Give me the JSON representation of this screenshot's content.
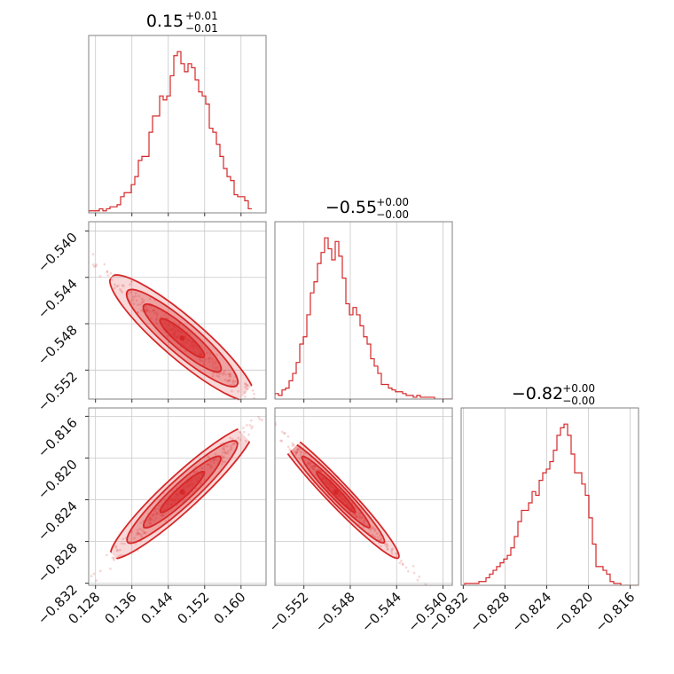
{
  "chart_data": {
    "type": "corner",
    "color": "#d62728",
    "parameters": [
      {
        "index": 0,
        "title_value": "0.15",
        "title_upper": "+0.01",
        "title_lower": "−0.01",
        "range": [
          0.1265,
          0.1655
        ],
        "ticks": [
          0.128,
          0.136,
          0.144,
          0.152,
          0.16
        ],
        "tick_labels": [
          "0.128",
          "0.136",
          "0.144",
          "0.152",
          "0.160"
        ],
        "hist_bin_start": 0.1265,
        "hist_bin_width": 0.00078,
        "hist_counts": [
          1,
          1,
          1,
          2,
          1,
          2,
          3,
          3,
          4,
          8,
          10,
          10,
          14,
          18,
          26,
          28,
          28,
          40,
          48,
          48,
          58,
          56,
          58,
          68,
          78,
          80,
          74,
          70,
          74,
          72,
          66,
          60,
          58,
          54,
          42,
          40,
          34,
          28,
          22,
          18,
          16,
          9,
          8,
          8,
          6,
          2
        ]
      },
      {
        "index": 1,
        "title_value": "−0.55",
        "title_upper": "+0.00",
        "title_lower": "−0.00",
        "range": [
          -0.5545,
          -0.5392
        ],
        "ticks": [
          -0.54,
          -0.544,
          -0.548,
          -0.552
        ],
        "tick_labels": [
          "−0.540",
          "−0.544",
          "−0.548",
          "−0.552"
        ],
        "x_ticks": [
          -0.552,
          -0.548,
          -0.544,
          -0.54
        ],
        "x_tick_labels": [
          "−0.552",
          "−0.548",
          "−0.544",
          "−0.540"
        ],
        "hist_bin_start": -0.5545,
        "hist_bin_width": 0.000306,
        "hist_counts": [
          3,
          2,
          5,
          6,
          10,
          14,
          20,
          30,
          34,
          46,
          58,
          64,
          74,
          80,
          88,
          82,
          76,
          86,
          78,
          66,
          52,
          46,
          50,
          46,
          40,
          34,
          30,
          22,
          18,
          14,
          8,
          8,
          6,
          5,
          4,
          4,
          3,
          2,
          2,
          1,
          2,
          1,
          1,
          1,
          1,
          0,
          0,
          0,
          0,
          0
        ]
      },
      {
        "index": 2,
        "title_value": "−0.82",
        "title_upper": "+0.00",
        "title_lower": "−0.00",
        "range": [
          -0.8322,
          -0.8152
        ],
        "ticks": [
          -0.816,
          -0.82,
          -0.824,
          -0.828,
          -0.832
        ],
        "tick_labels": [
          "−0.816",
          "−0.820",
          "−0.824",
          "−0.828",
          "−0.832"
        ],
        "x_ticks": [
          -0.832,
          -0.828,
          -0.824,
          -0.82,
          -0.816
        ],
        "x_tick_labels": [
          "−0.832",
          "−0.828",
          "−0.824",
          "−0.820",
          "−0.816"
        ],
        "hist_bin_start": -0.8322,
        "hist_bin_width": 0.00034,
        "hist_counts": [
          0,
          1,
          1,
          1,
          1,
          2,
          2,
          4,
          6,
          8,
          10,
          12,
          14,
          16,
          20,
          26,
          34,
          40,
          40,
          44,
          50,
          48,
          56,
          60,
          62,
          66,
          72,
          80,
          84,
          86,
          80,
          70,
          60,
          60,
          54,
          48,
          36,
          22,
          10,
          10,
          8,
          6,
          2,
          1,
          1,
          0,
          0,
          0,
          0,
          0
        ]
      }
    ],
    "pairs": [
      {
        "x": 0,
        "y": 1,
        "correlation": -0.97
      },
      {
        "x": 0,
        "y": 2,
        "correlation": 0.98
      },
      {
        "x": 1,
        "y": 2,
        "correlation": -0.99
      }
    ],
    "grid": true,
    "contour_levels": 4,
    "xlabels": [
      "",
      "",
      ""
    ],
    "ylabels": [
      "",
      "",
      ""
    ]
  }
}
